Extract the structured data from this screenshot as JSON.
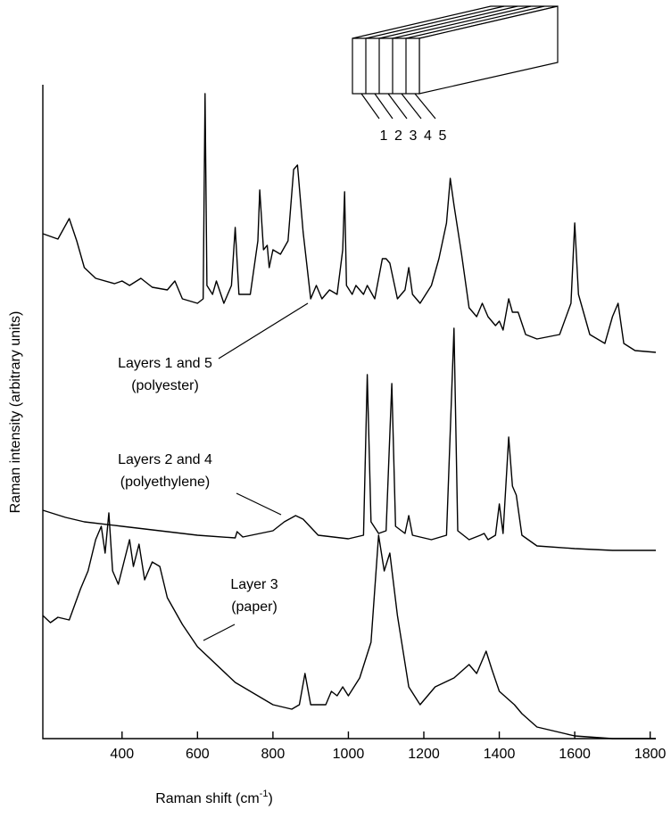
{
  "chart_data": {
    "type": "line",
    "x_label": [
      "Raman shift (cm",
      "-1",
      ")"
    ],
    "y_label": "Raman intensity (arbitrary units)",
    "xlim": [
      190,
      1815
    ],
    "xticks": [
      400,
      600,
      800,
      1000,
      1200,
      1400,
      1600,
      1800
    ],
    "ylim": [
      0,
      733
    ],
    "inset_labels": [
      "1",
      "2",
      "3",
      "4",
      "5"
    ],
    "annotations": [
      [
        "Layers 1 and 5",
        "(polyester)"
      ],
      [
        "Layers 2 and  4",
        "(polyethylene)"
      ],
      [
        "Layer 3",
        "(paper)"
      ]
    ],
    "series": [
      {
        "color": "#000000",
        "x": [
          190,
          230,
          260,
          280,
          300,
          330,
          380,
          400,
          420,
          450,
          480,
          520,
          540,
          560,
          600,
          615,
          620,
          625,
          640,
          650,
          670,
          690,
          700,
          710,
          740,
          760,
          765,
          775,
          785,
          790,
          800,
          820,
          840,
          855,
          865,
          880,
          900,
          915,
          930,
          950,
          970,
          985,
          990,
          995,
          1010,
          1020,
          1040,
          1050,
          1070,
          1090,
          1100,
          1110,
          1130,
          1150,
          1160,
          1170,
          1190,
          1220,
          1240,
          1260,
          1270,
          1280,
          1300,
          1320,
          1340,
          1355,
          1370,
          1390,
          1400,
          1410,
          1425,
          1435,
          1450,
          1470,
          1500,
          1560,
          1590,
          1600,
          1610,
          1640,
          1680,
          1700,
          1715,
          1730,
          1760,
          1815
        ],
        "values": [
          566,
          560,
          583,
          558,
          528,
          516,
          510,
          513,
          508,
          516,
          506,
          503,
          513,
          493,
          488,
          493,
          723,
          508,
          498,
          513,
          488,
          508,
          573,
          498,
          498,
          558,
          615,
          548,
          553,
          528,
          548,
          543,
          558,
          638,
          643,
          568,
          493,
          508,
          493,
          503,
          498,
          548,
          613,
          508,
          498,
          508,
          498,
          508,
          493,
          538,
          538,
          533,
          493,
          503,
          528,
          498,
          488,
          508,
          538,
          578,
          628,
          598,
          543,
          483,
          473,
          488,
          473,
          463,
          468,
          458,
          493,
          478,
          478,
          453,
          448,
          453,
          488,
          578,
          498,
          453,
          443,
          473,
          488,
          443,
          435,
          433
        ]
      },
      {
        "color": "#000000",
        "x": [
          190,
          250,
          300,
          400,
          500,
          600,
          700,
          705,
          720,
          800,
          830,
          860,
          880,
          920,
          1000,
          1040,
          1050,
          1060,
          1080,
          1100,
          1115,
          1125,
          1150,
          1160,
          1170,
          1220,
          1260,
          1280,
          1290,
          1320,
          1350,
          1360,
          1370,
          1390,
          1400,
          1410,
          1425,
          1435,
          1445,
          1460,
          1500,
          1600,
          1700,
          1815
        ],
        "values": [
          256,
          248,
          243,
          238,
          233,
          228,
          225,
          232,
          226,
          233,
          243,
          250,
          246,
          228,
          224,
          228,
          408,
          243,
          230,
          233,
          398,
          238,
          230,
          250,
          228,
          223,
          228,
          460,
          233,
          223,
          228,
          230,
          223,
          228,
          263,
          230,
          338,
          283,
          273,
          228,
          216,
          213,
          211,
          211
        ]
      },
      {
        "color": "#000000",
        "x": [
          190,
          210,
          230,
          260,
          290,
          310,
          330,
          345,
          355,
          365,
          375,
          390,
          405,
          420,
          430,
          445,
          460,
          480,
          500,
          520,
          560,
          600,
          700,
          800,
          850,
          870,
          885,
          900,
          940,
          955,
          970,
          985,
          1000,
          1030,
          1060,
          1080,
          1095,
          1110,
          1130,
          1160,
          1190,
          1230,
          1280,
          1320,
          1340,
          1365,
          1380,
          1400,
          1440,
          1460,
          1500,
          1600,
          1700,
          1815
        ],
        "values": [
          138,
          130,
          136,
          133,
          168,
          188,
          223,
          238,
          208,
          253,
          188,
          173,
          198,
          223,
          193,
          218,
          178,
          198,
          193,
          158,
          128,
          103,
          63,
          38,
          33,
          38,
          73,
          38,
          38,
          53,
          48,
          58,
          48,
          68,
          108,
          228,
          188,
          208,
          138,
          58,
          38,
          58,
          68,
          83,
          73,
          98,
          78,
          53,
          38,
          28,
          13,
          3,
          0,
          0
        ]
      }
    ]
  }
}
